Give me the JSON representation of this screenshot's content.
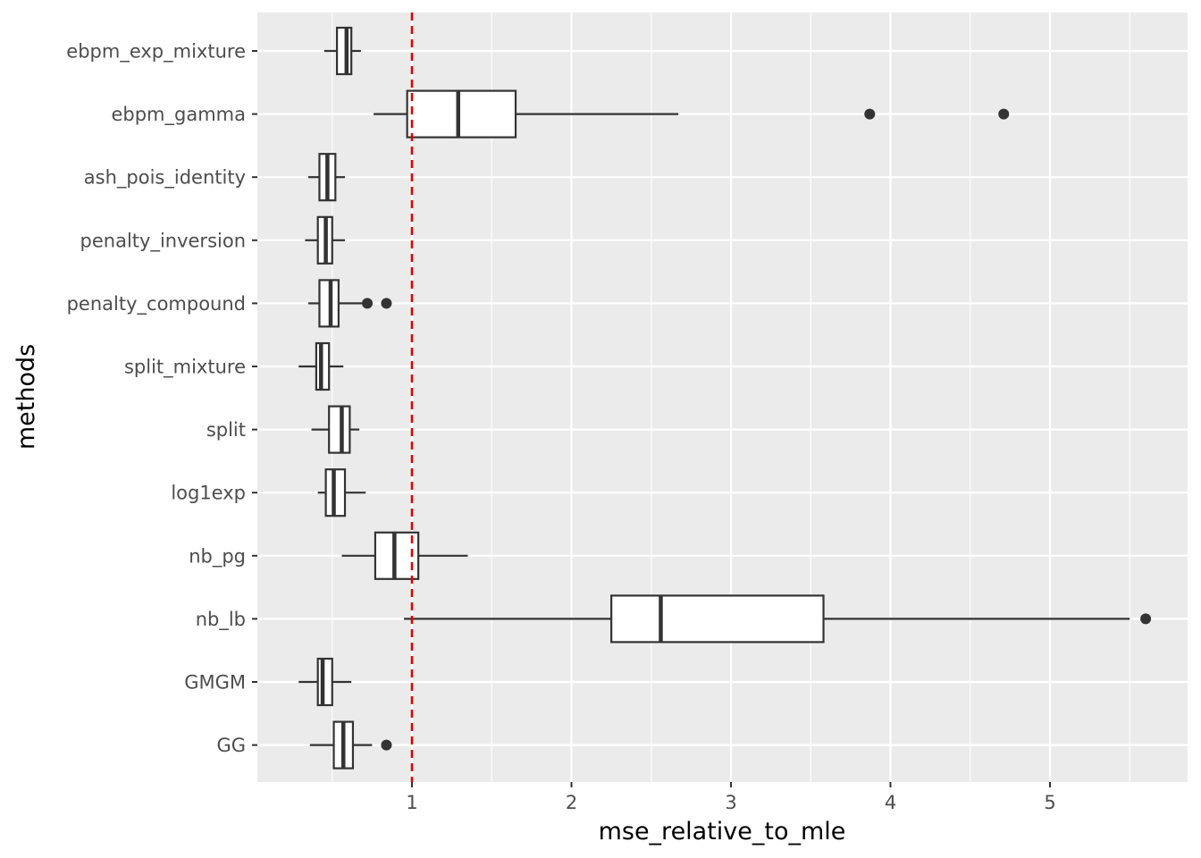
{
  "chart_data": {
    "type": "boxplot",
    "orientation": "horizontal",
    "xlabel": "mse_relative_to_mle",
    "ylabel": "methods",
    "xlim": [
      0.05,
      5.9
    ],
    "x_ticks": [
      "1",
      "2",
      "3",
      "4",
      "5"
    ],
    "reference_line": {
      "x": 1,
      "color": "#dd0000",
      "style": "dashed"
    },
    "grid": true,
    "background": "#ebebeb",
    "box_fill": "#ffffff",
    "box_stroke": "#333333",
    "categories": [
      "ebpm_exp_mixture",
      "ebpm_gamma",
      "ash_pois_identity",
      "penalty_inversion",
      "penalty_compound",
      "split_mixture",
      "split",
      "log1exp",
      "nb_pg",
      "nb_lb",
      "GMGM",
      "GG"
    ],
    "boxes": [
      {
        "method": "ebpm_exp_mixture",
        "whisker_low": 0.45,
        "q1": 0.53,
        "median": 0.59,
        "q3": 0.62,
        "whisker_high": 0.68,
        "outliers": []
      },
      {
        "method": "ebpm_gamma",
        "whisker_low": 0.76,
        "q1": 0.97,
        "median": 1.29,
        "q3": 1.65,
        "whisker_high": 2.67,
        "outliers": [
          3.87,
          4.71
        ]
      },
      {
        "method": "ash_pois_identity",
        "whisker_low": 0.35,
        "q1": 0.42,
        "median": 0.47,
        "q3": 0.52,
        "whisker_high": 0.58,
        "outliers": []
      },
      {
        "method": "penalty_inversion",
        "whisker_low": 0.33,
        "q1": 0.41,
        "median": 0.46,
        "q3": 0.5,
        "whisker_high": 0.58,
        "outliers": []
      },
      {
        "method": "penalty_compound",
        "whisker_low": 0.35,
        "q1": 0.42,
        "median": 0.49,
        "q3": 0.54,
        "whisker_high": 0.7,
        "outliers": [
          0.72,
          0.84
        ]
      },
      {
        "method": "split_mixture",
        "whisker_low": 0.29,
        "q1": 0.4,
        "median": 0.43,
        "q3": 0.48,
        "whisker_high": 0.57,
        "outliers": []
      },
      {
        "method": "split",
        "whisker_low": 0.37,
        "q1": 0.48,
        "median": 0.56,
        "q3": 0.61,
        "whisker_high": 0.67,
        "outliers": []
      },
      {
        "method": "log1exp",
        "whisker_low": 0.41,
        "q1": 0.46,
        "median": 0.51,
        "q3": 0.58,
        "whisker_high": 0.71,
        "outliers": []
      },
      {
        "method": "nb_pg",
        "whisker_low": 0.56,
        "q1": 0.77,
        "median": 0.89,
        "q3": 1.04,
        "whisker_high": 1.35,
        "outliers": []
      },
      {
        "method": "nb_lb",
        "whisker_low": 0.95,
        "q1": 2.25,
        "median": 2.56,
        "q3": 3.58,
        "whisker_high": 5.5,
        "outliers": [
          5.6
        ]
      },
      {
        "method": "GMGM",
        "whisker_low": 0.29,
        "q1": 0.41,
        "median": 0.44,
        "q3": 0.5,
        "whisker_high": 0.62,
        "outliers": []
      },
      {
        "method": "GG",
        "whisker_low": 0.36,
        "q1": 0.51,
        "median": 0.57,
        "q3": 0.63,
        "whisker_high": 0.75,
        "outliers": [
          0.84
        ]
      }
    ]
  }
}
